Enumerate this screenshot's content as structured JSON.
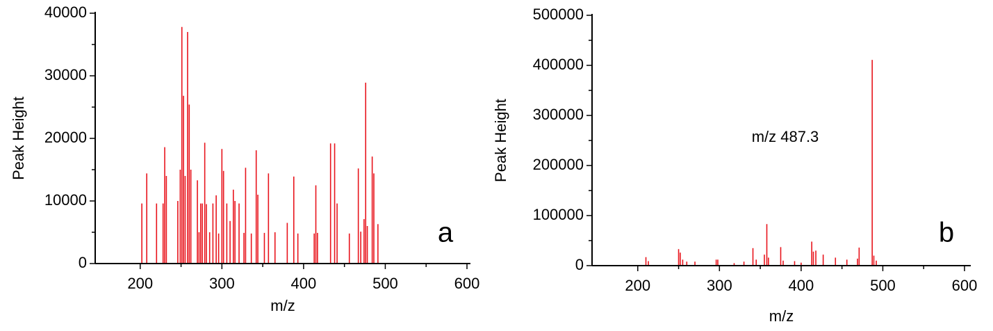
{
  "chart_data": [
    {
      "type": "spectrum",
      "x_label": "m/z",
      "y_label": "Peak Height",
      "panel_label": "a",
      "color": "#e8141c",
      "xlim": [
        150,
        600
      ],
      "xticks": [
        200,
        300,
        400,
        500,
        600
      ],
      "xminorticks": [
        250,
        350,
        450,
        550
      ],
      "ylim": [
        0,
        40000
      ],
      "yticks": [
        0,
        10000,
        20000,
        30000,
        40000
      ],
      "yminorticks": [
        5000,
        15000,
        25000,
        35000
      ],
      "x": [
        202,
        208,
        220,
        228,
        230,
        232,
        246,
        249,
        251,
        253,
        255,
        258,
        260,
        262,
        270,
        272,
        274,
        276,
        279,
        281,
        285,
        289,
        293,
        296,
        300,
        302,
        306,
        310,
        314,
        316,
        321,
        327,
        329,
        336,
        342,
        344,
        352,
        357,
        365,
        380,
        388,
        393,
        413,
        415,
        417,
        433,
        438,
        441,
        456,
        467,
        470,
        474,
        476,
        478,
        484,
        486,
        491
      ],
      "values": [
        9600,
        14400,
        9600,
        9600,
        18600,
        14000,
        10000,
        15000,
        37800,
        26800,
        14000,
        37000,
        25400,
        15000,
        13300,
        5000,
        9600,
        9600,
        19300,
        9500,
        5000,
        9600,
        10900,
        4800,
        18300,
        14800,
        9600,
        6800,
        11800,
        10000,
        9600,
        4900,
        15300,
        4800,
        18100,
        11000,
        4900,
        14400,
        5000,
        6500,
        13900,
        4800,
        4800,
        12500,
        4900,
        19200,
        19200,
        9600,
        4800,
        15200,
        5100,
        7100,
        28900,
        6000,
        17100,
        14400,
        6300
      ]
    },
    {
      "type": "spectrum",
      "x_label": "m/z",
      "y_label": "Peak Height",
      "panel_label": "b",
      "annotation": "m/z 487.3",
      "color": "#e8141c",
      "xlim": [
        150,
        600
      ],
      "xticks": [
        200,
        300,
        400,
        500,
        600
      ],
      "xminorticks": [
        250,
        350,
        450,
        550
      ],
      "ylim": [
        0,
        500000
      ],
      "yticks": [
        0,
        100000,
        200000,
        300000,
        400000,
        500000
      ],
      "yminorticks": [
        50000,
        150000,
        250000,
        350000,
        450000
      ],
      "x": [
        210,
        213,
        250,
        252,
        255,
        260,
        270,
        296,
        298,
        318,
        330,
        341,
        345,
        355,
        358,
        360,
        375,
        378,
        392,
        400,
        413,
        415,
        418,
        427,
        442,
        456,
        469,
        471,
        487,
        489,
        492
      ],
      "values": [
        17000,
        9000,
        33000,
        26000,
        12000,
        8000,
        8000,
        12000,
        12000,
        5000,
        8000,
        35000,
        12000,
        22000,
        83000,
        16000,
        37000,
        10000,
        9000,
        6000,
        48000,
        28000,
        30000,
        22000,
        16000,
        12000,
        14000,
        36000,
        411000,
        20000,
        10000
      ]
    }
  ]
}
